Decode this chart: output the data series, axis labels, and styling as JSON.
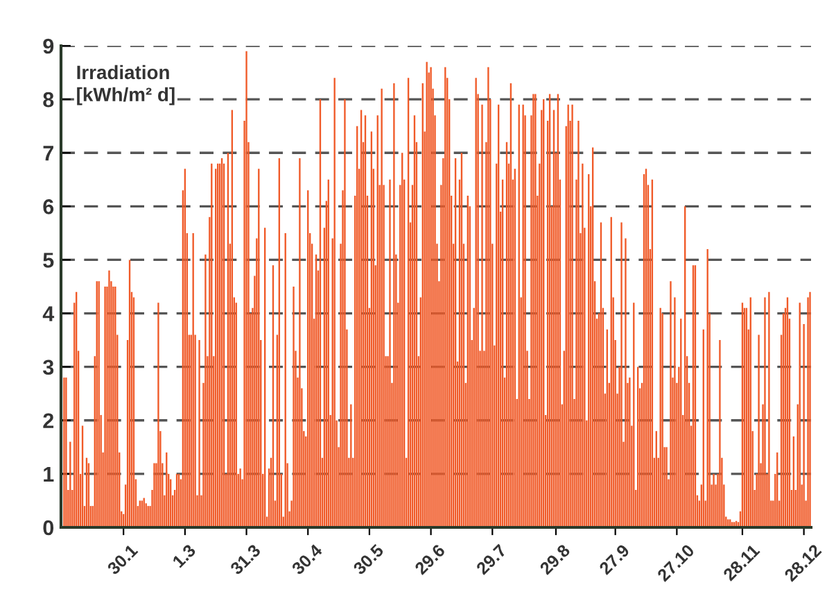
{
  "chart_data": {
    "type": "bar",
    "ylabel": "Irradiation\n[kWh/m² d]",
    "color": "#f05a28",
    "categories": [
      null,
      null,
      null,
      null,
      null,
      null,
      null,
      null,
      null,
      null,
      null,
      null,
      null,
      null,
      null,
      null,
      null,
      null,
      null,
      null,
      null,
      null,
      null,
      null,
      null,
      null,
      null,
      null,
      null,
      "30.1",
      null,
      null,
      null,
      null,
      null,
      null,
      null,
      null,
      null,
      null,
      null,
      null,
      null,
      null,
      null,
      null,
      null,
      null,
      null,
      null,
      null,
      null,
      null,
      null,
      null,
      null,
      null,
      null,
      null,
      "1.3",
      null,
      null,
      null,
      null,
      null,
      null,
      null,
      null,
      null,
      null,
      null,
      null,
      null,
      null,
      null,
      null,
      null,
      null,
      null,
      null,
      null,
      null,
      null,
      null,
      null,
      null,
      null,
      null,
      null,
      "31.3",
      null,
      null,
      null,
      null,
      null,
      null,
      null,
      null,
      null,
      null,
      null,
      null,
      null,
      null,
      null,
      null,
      null,
      null,
      null,
      null,
      null,
      null,
      null,
      null,
      null,
      null,
      null,
      null,
      null,
      "30.4",
      null,
      null,
      null,
      null,
      null,
      null,
      null,
      null,
      null,
      null,
      null,
      null,
      null,
      null,
      null,
      null,
      null,
      null,
      null,
      null,
      null,
      null,
      null,
      null,
      null,
      null,
      null,
      null,
      null,
      "30.5",
      null,
      null,
      null,
      null,
      null,
      null,
      null,
      null,
      null,
      null,
      null,
      null,
      null,
      null,
      null,
      null,
      null,
      null,
      null,
      null,
      null,
      null,
      null,
      null,
      null,
      null,
      null,
      null,
      null,
      "29.6",
      null,
      null,
      null,
      null,
      null,
      null,
      null,
      null,
      null,
      null,
      null,
      null,
      null,
      null,
      null,
      null,
      null,
      null,
      null,
      null,
      null,
      null,
      null,
      null,
      null,
      null,
      null,
      null,
      null,
      "29.7",
      null,
      null,
      null,
      null,
      null,
      null,
      null,
      null,
      null,
      null,
      null,
      null,
      null,
      null,
      null,
      null,
      null,
      null,
      null,
      null,
      null,
      null,
      null,
      null,
      null,
      null,
      null,
      null,
      null,
      null,
      "29.8",
      null,
      null,
      null,
      null,
      null,
      null,
      null,
      null,
      null,
      null,
      null,
      null,
      null,
      null,
      null,
      null,
      null,
      null,
      null,
      null,
      null,
      null,
      null,
      null,
      null,
      null,
      null,
      null,
      "27.9",
      null,
      null,
      null,
      null,
      null,
      null,
      null,
      null,
      null,
      null,
      null,
      null,
      null,
      null,
      null,
      null,
      null,
      null,
      null,
      null,
      null,
      null,
      null,
      null,
      null,
      null,
      null,
      null,
      null,
      "27.10",
      null,
      null,
      null,
      null,
      null,
      null,
      null,
      null,
      null,
      null,
      null,
      null,
      null,
      null,
      null,
      null,
      null,
      null,
      null,
      null,
      null,
      null,
      null,
      null,
      null,
      null,
      null,
      null,
      null,
      null,
      null,
      "28.11",
      null,
      null,
      null,
      null,
      null,
      null,
      null,
      null,
      null,
      null,
      null,
      null,
      null,
      null,
      null,
      null,
      null,
      null,
      null,
      null,
      null,
      null,
      null,
      null,
      null,
      null,
      null,
      null,
      null,
      "28.12",
      null,
      null,
      null
    ],
    "values": [
      2.8,
      2.8,
      0.7,
      1.6,
      0.7,
      4.2,
      4.4,
      3.3,
      1.0,
      1.9,
      0.4,
      1.3,
      1.2,
      0.4,
      0.4,
      3.2,
      4.6,
      4.6,
      2.1,
      1.4,
      4.5,
      4.5,
      4.8,
      4.6,
      4.5,
      4.5,
      3.6,
      1.4,
      0.3,
      0.25,
      0.8,
      3.5,
      5.0,
      4.4,
      4.3,
      0.9,
      0.4,
      0.5,
      0.5,
      0.55,
      0.45,
      0.4,
      0.4,
      0.7,
      1.2,
      1.2,
      4.2,
      1.8,
      1.2,
      0.6,
      1.4,
      1.0,
      0.9,
      0.6,
      0.7,
      1.0,
      1.0,
      0.9,
      6.3,
      6.7,
      5.5,
      3.6,
      3.6,
      5.5,
      3.6,
      0.6,
      3.5,
      0.6,
      2.7,
      5.1,
      3.2,
      5.8,
      6.8,
      3.2,
      6.7,
      6.8,
      6.8,
      6.9,
      6.8,
      1.0,
      7.0,
      5.3,
      7.8,
      4.3,
      4.2,
      1.0,
      1.1,
      0.9,
      7.6,
      8.9,
      7.2,
      4.0,
      4.1,
      4.7,
      5.4,
      6.7,
      3.5,
      1.0,
      5.6,
      0.2,
      1.1,
      1.3,
      4.9,
      0.5,
      3.6,
      6.9,
      1.0,
      0.2,
      5.5,
      1.2,
      0.3,
      0.5,
      4.5,
      3.3,
      2.8,
      6.9,
      2.6,
      1.8,
      1.7,
      6.3,
      5.5,
      5.3,
      3.9,
      5.1,
      4.8,
      8.0,
      1.3,
      5.6,
      6.1,
      6.5,
      2.1,
      5.4,
      8.4,
      2.0,
      1.5,
      5.3,
      6.3,
      8.0,
      3.7,
      1.3,
      2.3,
      1.3,
      6.2,
      7.5,
      6.7,
      7.8,
      7.2,
      7.7,
      6.2,
      4.1,
      7.4,
      6.7,
      4.9,
      7.7,
      6.4,
      8.2,
      6.4,
      3.2,
      3.2,
      6.5,
      2.7,
      8.3,
      5.1,
      4.2,
      6.4,
      7.0,
      6.5,
      1.3,
      8.4,
      5.7,
      6.4,
      7.7,
      7.2,
      3.2,
      4.3,
      8.3,
      7.4,
      8.7,
      8.5,
      8.6,
      8.2,
      7.7,
      5.3,
      4.6,
      6.4,
      6.9,
      8.6,
      8.4,
      8.0,
      6.2,
      5.3,
      6.9,
      3.1,
      6.5,
      7.0,
      5.3,
      2.7,
      6.2,
      6.0,
      3.5,
      4.1,
      8.4,
      8.1,
      3.3,
      7.9,
      3.3,
      7.2,
      8.6,
      8.0,
      5.3,
      3.4,
      6.8,
      7.9,
      5.9,
      6.5,
      2.8,
      7.2,
      6.8,
      8.3,
      6.5,
      6.7,
      2.4,
      7.9,
      4.3,
      7.9,
      7.7,
      3.3,
      2.4,
      7.7,
      8.1,
      8.1,
      6.2,
      6.8,
      7.8,
      8.0,
      2.1,
      7.6,
      8.1,
      6.0,
      7.8,
      7.0,
      8.1,
      6.5,
      2.3,
      3.3,
      7.5,
      7.9,
      7.6,
      7.9,
      2.4,
      6.5,
      7.6,
      5.5,
      6.8,
      5.6,
      2.0,
      6.6,
      6.0,
      7.1,
      4.6,
      3.9,
      4.0,
      5.7,
      4.1,
      2.5,
      3.7,
      2.7,
      5.8,
      4.3,
      3.5,
      2.5,
      3.0,
      5.7,
      1.6,
      5.4,
      2.7,
      2.8,
      1.9,
      4.2,
      0.7,
      3.0,
      2.6,
      2.7,
      6.6,
      6.7,
      6.4,
      5.2,
      6.5,
      1.3,
      1.8,
      1.3,
      4.1,
      4.0,
      1.5,
      1.5,
      0.9,
      4.6,
      2.8,
      4.3,
      2.7,
      3.0,
      3.9,
      2.1,
      6.0,
      3.2,
      2.7,
      1.9,
      4.9,
      4.9,
      0.6,
      0.5,
      0.8,
      3.7,
      0.5,
      5.2,
      4.0,
      0.8,
      1.0,
      0.8,
      1.0,
      3.5,
      1.3,
      0.8,
      0.2,
      0.15,
      0.15,
      0.1,
      0.1,
      0.12,
      0.1,
      0.3,
      4.2,
      4.1,
      4.1,
      3.7,
      4.3,
      1.8,
      0.7,
      1.0,
      3.6,
      1.2,
      2.3,
      4.3,
      1.0,
      4.4,
      0.5,
      0.5,
      1.0,
      1.4,
      0.5,
      3.6,
      4.0,
      4.1,
      4.3,
      3.9,
      0.7,
      1.7,
      0.7,
      2.3,
      4.2,
      0.8,
      3.8,
      0.5,
      4.3,
      4.4
    ],
    "ylim": [
      0,
      9
    ],
    "yticks": [
      0,
      1,
      2,
      3,
      4,
      5,
      6,
      7,
      8,
      9
    ],
    "grid": "y"
  }
}
